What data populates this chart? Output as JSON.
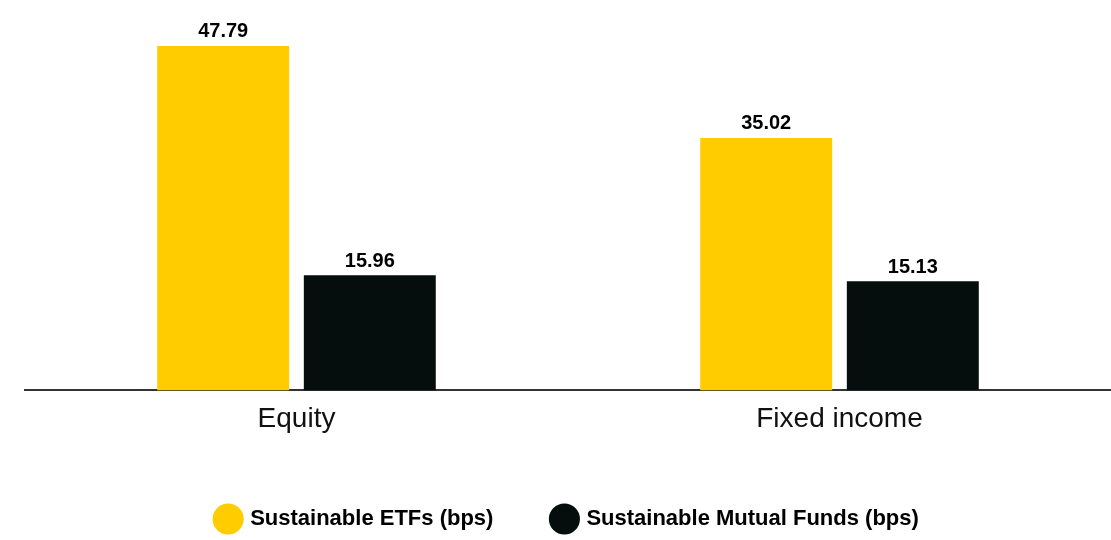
{
  "chart_data": {
    "type": "bar",
    "categories": [
      "Equity",
      "Fixed income"
    ],
    "series": [
      {
        "name": "Sustainable ETFs (bps)",
        "color": "#ffcc00",
        "values": [
          47.79,
          35.02
        ]
      },
      {
        "name": "Sustainable Mutual Funds (bps)",
        "color": "#050e0c",
        "values": [
          15.96,
          15.13
        ]
      }
    ],
    "data_labels": true,
    "legend": "bottom",
    "grid": false
  }
}
